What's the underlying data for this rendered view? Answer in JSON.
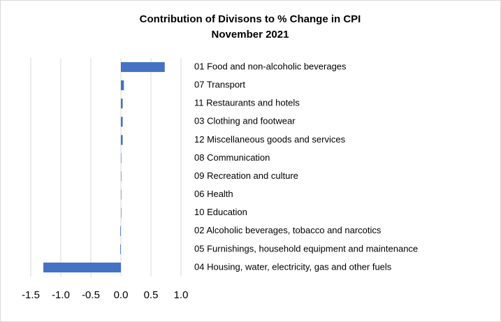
{
  "chart_data": {
    "type": "bar",
    "orientation": "horizontal",
    "title": [
      "Contribution of Divisons to % Change in CPI",
      "November 2021"
    ],
    "categories": [
      "01 Food and non-alcoholic beverages",
      "07 Transport",
      "11 Restaurants and hotels",
      "03 Clothing and footwear",
      "12 Miscellaneous goods and services",
      "08 Communication",
      "09 Recreation and culture",
      "06 Health",
      "10 Education",
      "02 Alcoholic beverages, tobacco and narcotics",
      "05 Furnishings, household equipment and maintenance",
      "04 Housing, water, electricity, gas and other fuels"
    ],
    "values": [
      0.73,
      0.05,
      0.03,
      0.03,
      0.03,
      0,
      0,
      0,
      0,
      -0.01,
      -0.01,
      -1.29
    ],
    "color": "#4472c4",
    "xlim": [
      -1.5,
      1.0
    ],
    "xticks": [
      -1.5,
      {
        "value": -1.0,
        "label": "-1.0"
      },
      -0.5,
      {
        "value": 0,
        "label": "0.0"
      },
      0.5,
      {
        "value": 1,
        "label": "1.0"
      }
    ],
    "grid": true
  }
}
